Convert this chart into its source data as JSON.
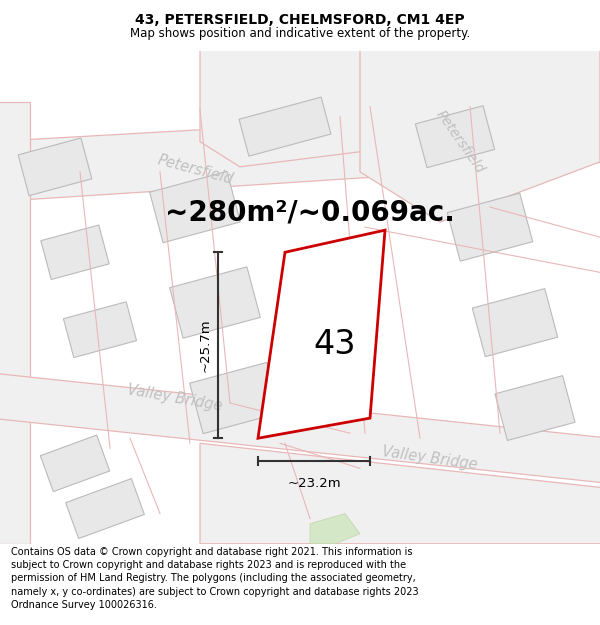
{
  "title": "43, PETERSFIELD, CHELMSFORD, CM1 4EP",
  "subtitle": "Map shows position and indicative extent of the property.",
  "area_text": "~280m²/~0.069ac.",
  "property_number": "43",
  "dim_width": "~23.2m",
  "dim_height": "~25.7m",
  "footer_text": "Contains OS data © Crown copyright and database right 2021. This information is subject to Crown copyright and database rights 2023 and is reproduced with the permission of HM Land Registry. The polygons (including the associated geometry, namely x, y co-ordinates) are subject to Crown copyright and database rights 2023 Ordnance Survey 100026316.",
  "map_bg": "#ffffff",
  "road_fill": "#f0f0f0",
  "road_edge": "#e8b8b8",
  "building_fill": "#e8e8e8",
  "building_stroke": "#bbbbbb",
  "property_stroke": "#cc0000",
  "property_fill": "#ffffff",
  "road_label_color": "#c0c0c0",
  "title_fontsize": 10,
  "subtitle_fontsize": 8.5,
  "area_fontsize": 20,
  "property_number_fontsize": 24,
  "dim_fontsize": 9.5,
  "footer_fontsize": 7.0,
  "title_weight": "bold",
  "road_lw": 0.9,
  "building_lw": 0.8,
  "property_lw": 2.0
}
